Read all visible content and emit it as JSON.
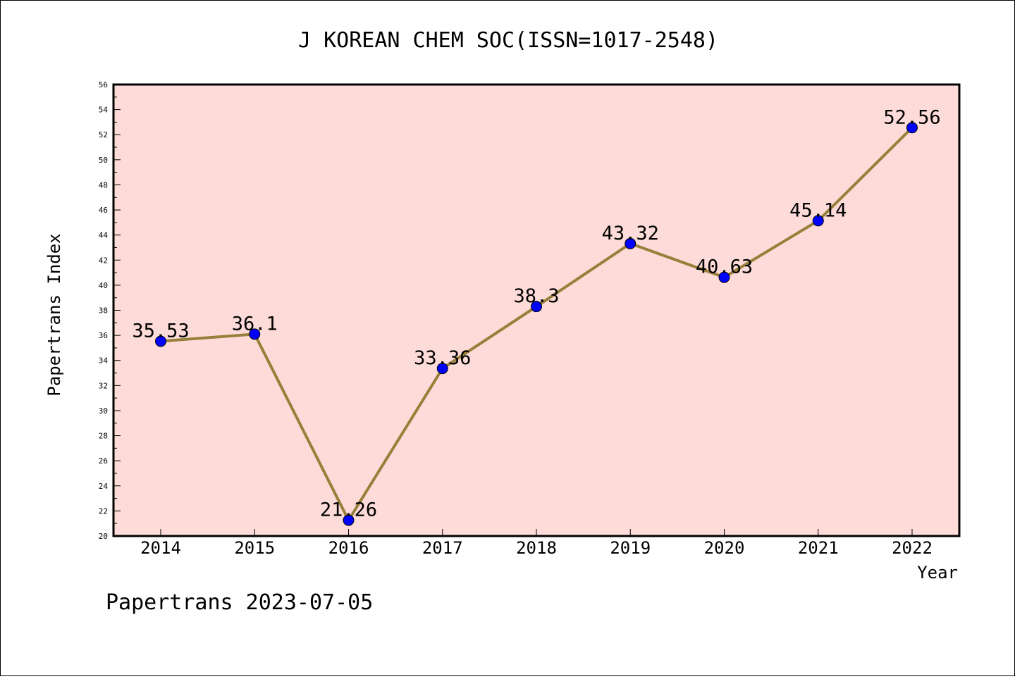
{
  "chart_data": {
    "type": "line",
    "title": "J KOREAN CHEM SOC(ISSN=1017-2548)",
    "xlabel": "Year",
    "ylabel": "Papertrans Index",
    "categories": [
      "2014",
      "2015",
      "2016",
      "2017",
      "2018",
      "2019",
      "2020",
      "2021",
      "2022"
    ],
    "series": [
      {
        "values": [
          35.53,
          36.1,
          21.26,
          33.36,
          38.3,
          43.32,
          40.63,
          45.14,
          52.56
        ],
        "labels": [
          "35.53",
          "36.1",
          "21.26",
          "33.36",
          "38.3",
          "43.32",
          "40.63",
          "45.14",
          "52.56"
        ],
        "line_color": "#96803a",
        "marker_color": "#0000ff"
      }
    ],
    "ylim": [
      20,
      56
    ],
    "yticks": [
      "20",
      "22",
      "24",
      "26",
      "28",
      "30",
      "32",
      "34",
      "36",
      "38",
      "40",
      "42",
      "44",
      "46",
      "48",
      "50",
      "52",
      "54",
      "56"
    ],
    "grid": false,
    "legend": "none",
    "plot_background": "#fddbd8"
  },
  "footer": "Papertrans 2023-07-05"
}
